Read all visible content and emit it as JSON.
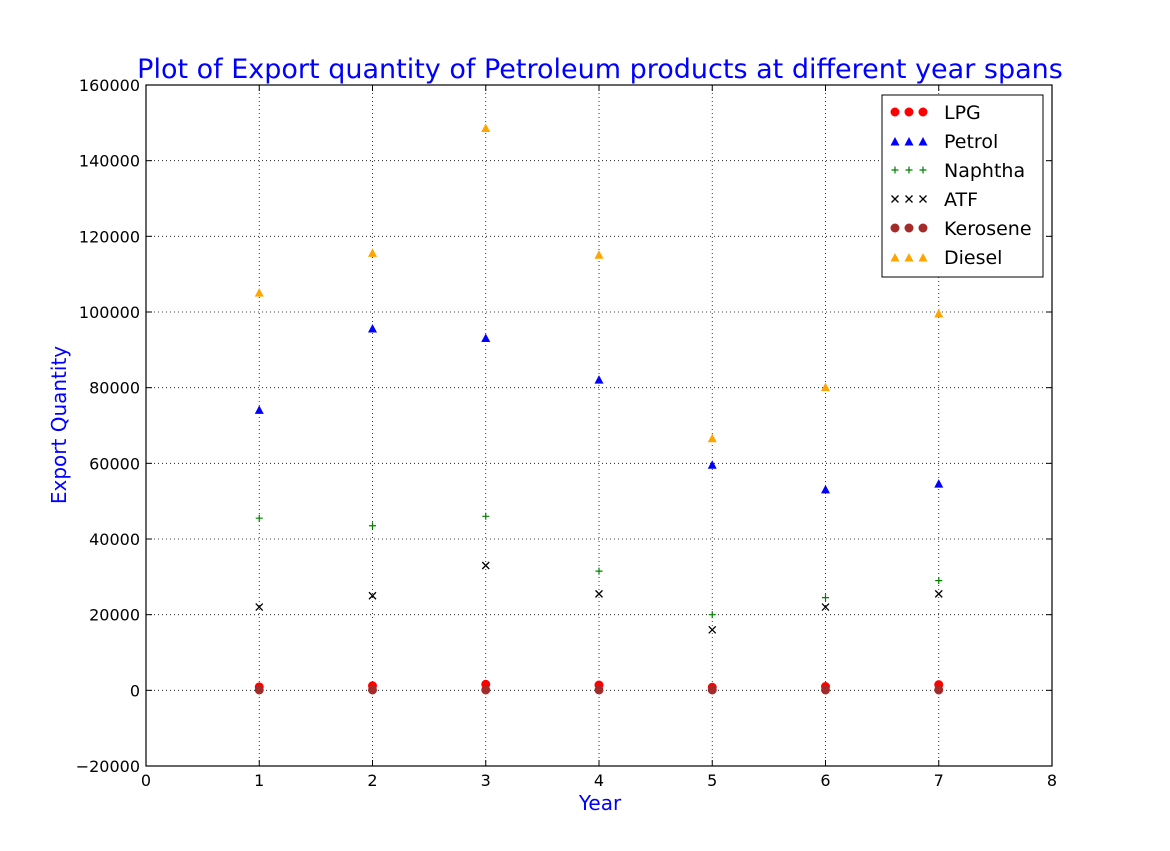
{
  "chart_data": {
    "type": "scatter",
    "title": "Plot of Export quantity of Petroleum products at different year spans",
    "xlabel": "Year",
    "ylabel": "Export Quantity",
    "xlim": [
      0,
      8
    ],
    "ylim": [
      -20000,
      160000
    ],
    "xticks": [
      0,
      1,
      2,
      3,
      4,
      5,
      6,
      7,
      8
    ],
    "yticks": [
      -20000,
      0,
      20000,
      40000,
      60000,
      80000,
      100000,
      120000,
      140000,
      160000
    ],
    "xtick_labels": [
      "0",
      "1",
      "2",
      "3",
      "4",
      "5",
      "6",
      "7",
      "8"
    ],
    "ytick_labels": [
      "−20000",
      "0",
      "20000",
      "40000",
      "60000",
      "80000",
      "100000",
      "120000",
      "140000",
      "160000"
    ],
    "grid": true,
    "legend_position": "top-right",
    "title_color": "#0000ff",
    "label_color": "#0000ff",
    "x": [
      1,
      2,
      3,
      4,
      5,
      6,
      7
    ],
    "series": [
      {
        "name": "LPG",
        "marker": "circle",
        "color": "#ff0000",
        "values": [
          900,
          1200,
          1600,
          1400,
          800,
          1000,
          1500
        ]
      },
      {
        "name": "Petrol",
        "marker": "triangle",
        "color": "#0000ff",
        "values": [
          74000,
          95500,
          93000,
          82000,
          59500,
          53000,
          54500
        ]
      },
      {
        "name": "Naphtha",
        "marker": "plus",
        "color": "#008000",
        "values": [
          45500,
          43500,
          46000,
          31500,
          20000,
          24500,
          29000
        ]
      },
      {
        "name": "ATF",
        "marker": "x",
        "color": "#000000",
        "values": [
          22000,
          25000,
          33000,
          25500,
          16000,
          22000,
          25500
        ]
      },
      {
        "name": "Kerosene",
        "marker": "circle",
        "color": "#a52a2a",
        "values": [
          100,
          100,
          100,
          100,
          100,
          100,
          100
        ]
      },
      {
        "name": "Diesel",
        "marker": "triangle",
        "color": "#ffa500",
        "values": [
          105000,
          115500,
          148500,
          115000,
          66500,
          80000,
          99500
        ]
      }
    ]
  }
}
